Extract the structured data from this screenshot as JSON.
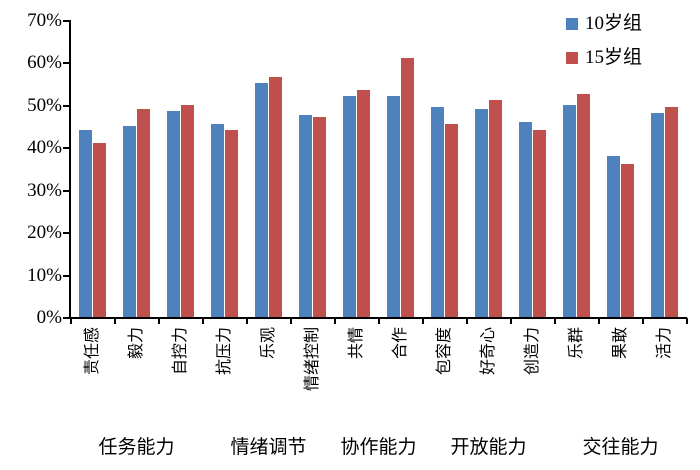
{
  "chart_data": {
    "type": "bar",
    "title": "",
    "xlabel": "",
    "ylabel": "",
    "categories": [
      "责任感",
      "毅力",
      "自控力",
      "抗压力",
      "乐观",
      "情绪控制",
      "共情",
      "合作",
      "包容度",
      "好奇心",
      "创造力",
      "乐群",
      "果敢",
      "活力"
    ],
    "category_groups": [
      {
        "label": "任务能力",
        "span": 3
      },
      {
        "label": "情绪调节",
        "span": 3
      },
      {
        "label": "协作能力",
        "span": 2
      },
      {
        "label": "开放能力",
        "span": 3
      },
      {
        "label": "交往能力",
        "span": 3
      }
    ],
    "series": [
      {
        "name": "10岁组",
        "color": "#4F81BD",
        "values": [
          44,
          45,
          48.5,
          45.5,
          55,
          47.5,
          52,
          52,
          49.5,
          49,
          46,
          50,
          38,
          48
        ]
      },
      {
        "name": "15岁组",
        "color": "#C0504D",
        "values": [
          41,
          49,
          50,
          44,
          56.5,
          47,
          53.5,
          61,
          45.5,
          51,
          44,
          52.5,
          36,
          49.5
        ]
      }
    ],
    "ylim": [
      0,
      70
    ],
    "ytick_step": 10,
    "ytick_labels": [
      "0%",
      "10%",
      "20%",
      "30%",
      "40%",
      "50%",
      "60%",
      "70%"
    ],
    "grid": false,
    "legend_position": "top-right",
    "axis_color": "#000000"
  }
}
